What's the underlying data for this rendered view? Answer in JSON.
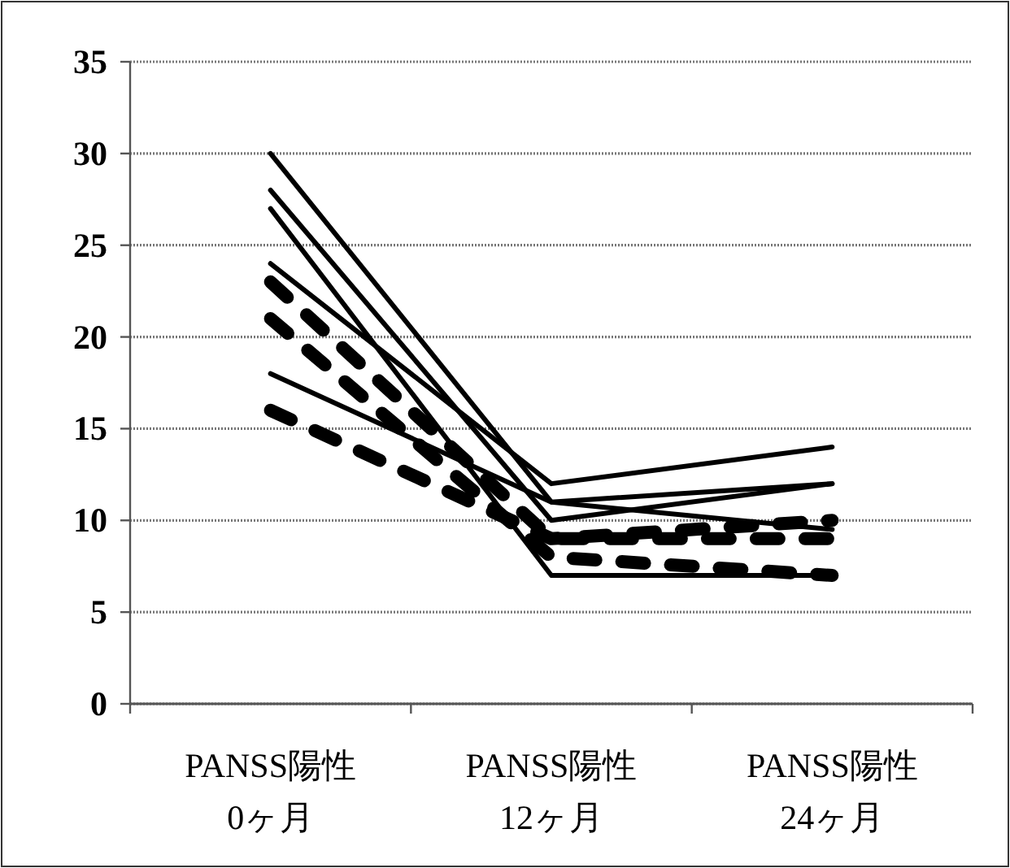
{
  "chart_data": {
    "type": "line",
    "categories": [
      "PANSS陽性 0ヶ月",
      "PANSS陽性 12ヶ月",
      "PANSS陽性 24ヶ月"
    ],
    "series": [
      {
        "color": "#000000",
        "line_style": "solid",
        "values": [
          30,
          11,
          12
        ]
      },
      {
        "color": "#000000",
        "line_style": "solid",
        "values": [
          28,
          10,
          12
        ]
      },
      {
        "color": "#000000",
        "line_style": "solid",
        "values": [
          27,
          7,
          7
        ]
      },
      {
        "color": "#000000",
        "line_style": "solid",
        "values": [
          24,
          12,
          14
        ]
      },
      {
        "color": "#000000",
        "line_style": "solid",
        "values": [
          18,
          11,
          9.5
        ]
      },
      {
        "color": "#000000",
        "line_style": "dashed",
        "values": [
          23,
          9,
          9
        ]
      },
      {
        "color": "#000000",
        "line_style": "dashed",
        "values": [
          21,
          8,
          7
        ]
      },
      {
        "color": "#000000",
        "line_style": "dashed",
        "values": [
          16,
          9,
          10
        ]
      }
    ],
    "ylim": [
      0,
      35
    ],
    "yticks": [
      0,
      5,
      10,
      15,
      20,
      25,
      30,
      35
    ],
    "grid": "y",
    "marker": "none"
  }
}
